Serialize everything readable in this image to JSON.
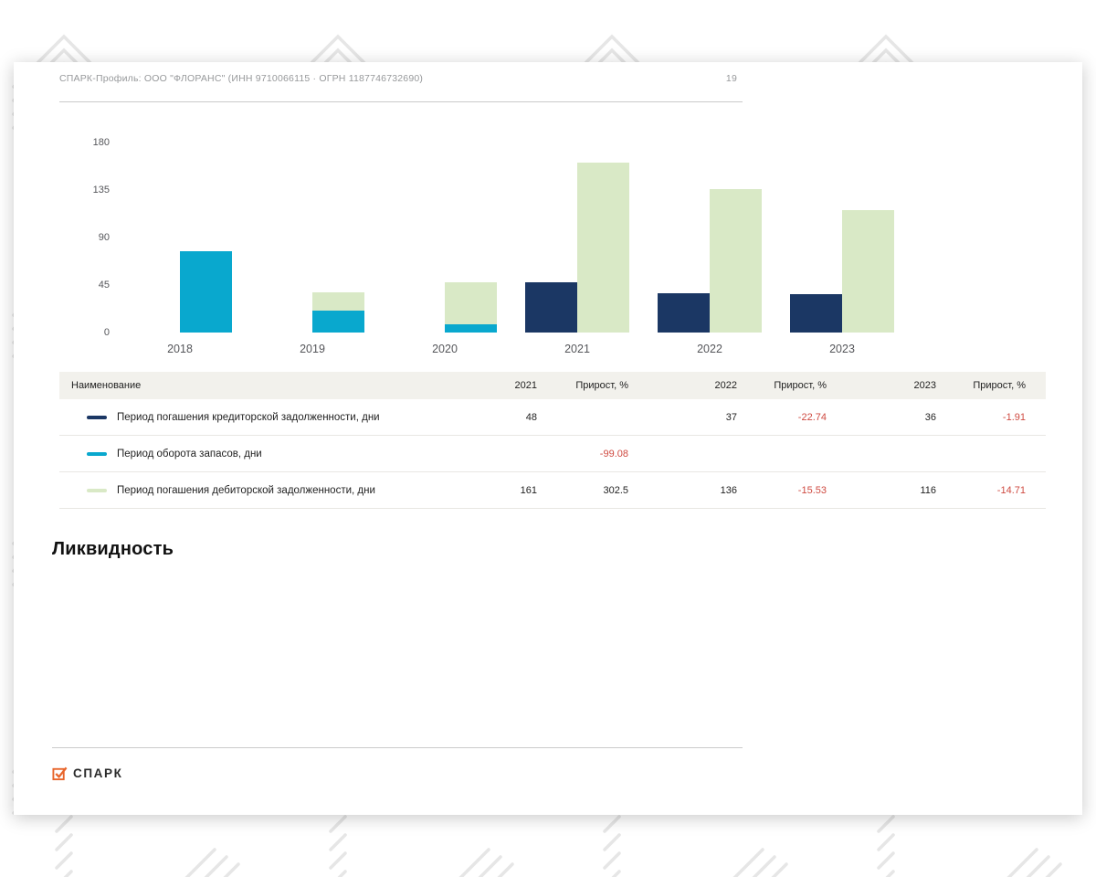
{
  "header": {
    "title": "СПАРК-Профиль: ООО \"ФЛОРАНС\" (ИНН 9710066115 · ОГРН 1187746732690)",
    "page_number": "19"
  },
  "section_heading": "Ликвидность",
  "footer": {
    "logo_text": "СПАРК"
  },
  "colors": {
    "navy": "#1b3764",
    "cyan": "#09a8ce",
    "green": "#d9e9c6",
    "negative_red": "#cf4a41",
    "logo_orange": "#e8652b",
    "table_header_bg": "#f2f1ec"
  },
  "chart_data": {
    "type": "bar",
    "title": "",
    "xlabel": "",
    "ylabel": "",
    "categories": [
      "2018",
      "2019",
      "2020",
      "2021",
      "2022",
      "2023"
    ],
    "yticks": [
      0,
      45,
      90,
      135,
      180
    ],
    "ylim": [
      0,
      180
    ],
    "grid": false,
    "legend_position": "table-below",
    "series": [
      {
        "name": "Период погашения кредиторской задолженности, дни",
        "color": "#1b3764",
        "slot": "left",
        "values": [
          null,
          null,
          null,
          48,
          37,
          36
        ]
      },
      {
        "name": "Период оборота запасов, дни",
        "color": "#09a8ce",
        "slot": "right",
        "values": [
          77,
          21,
          8,
          null,
          null,
          null
        ]
      },
      {
        "name": "Период погашения дебиторской задолженности, дни",
        "color": "#d9e9c6",
        "slot": "right",
        "values": [
          null,
          38,
          48,
          161,
          136,
          116
        ]
      }
    ]
  },
  "table": {
    "columns": [
      "Наименование",
      "2021",
      "Прирост, %",
      "2022",
      "Прирост, %",
      "2023",
      "Прирост, %"
    ],
    "rows": [
      {
        "name": "Период погашения кредиторской задолженности, дни",
        "legend_color": "#1b3764",
        "cells": [
          {
            "v": "48"
          },
          {
            "v": ""
          },
          {
            "v": "37"
          },
          {
            "v": "-22.74"
          },
          {
            "v": "36"
          },
          {
            "v": "-1.91"
          }
        ]
      },
      {
        "name": "Период оборота запасов, дни",
        "legend_color": "#09a8ce",
        "cells": [
          {
            "v": ""
          },
          {
            "v": "-99.08"
          },
          {
            "v": ""
          },
          {
            "v": ""
          },
          {
            "v": ""
          },
          {
            "v": ""
          }
        ]
      },
      {
        "name": "Период погашения дебиторской задолженности, дни",
        "legend_color": "#d9e9c6",
        "cells": [
          {
            "v": "161"
          },
          {
            "v": "302.5"
          },
          {
            "v": "136"
          },
          {
            "v": "-15.53"
          },
          {
            "v": "116"
          },
          {
            "v": "-14.71"
          }
        ]
      }
    ]
  }
}
